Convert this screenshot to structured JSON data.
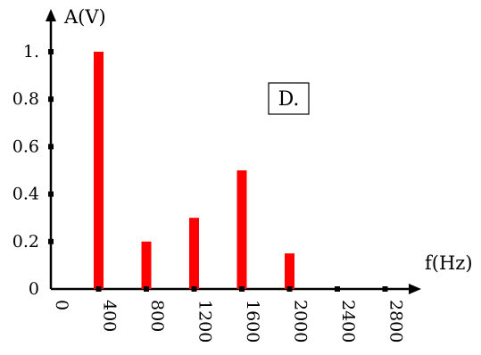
{
  "chart_data": {
    "type": "bar",
    "ylabel": "A(V)",
    "xlabel": "f(Hz)",
    "annotation": "D.",
    "xlim": [
      0,
      3000
    ],
    "ylim": [
      0,
      1.1
    ],
    "x_ticks": [
      "0",
      "400",
      "800",
      "1200",
      "1600",
      "2000",
      "2400",
      "2800"
    ],
    "x_tick_values": [
      0,
      400,
      800,
      1200,
      1600,
      2000,
      2400,
      2800
    ],
    "y_ticks": [
      "0",
      "0.2",
      "0.4",
      "0.6",
      "0.8",
      "1."
    ],
    "y_tick_values": [
      0,
      0.2,
      0.4,
      0.6,
      0.8,
      1.0
    ],
    "x": [
      400,
      800,
      1200,
      1600,
      2000
    ],
    "values": [
      1.0,
      0.2,
      0.3,
      0.5,
      0.15
    ],
    "bar_color": "#ff0000",
    "grid": false
  }
}
